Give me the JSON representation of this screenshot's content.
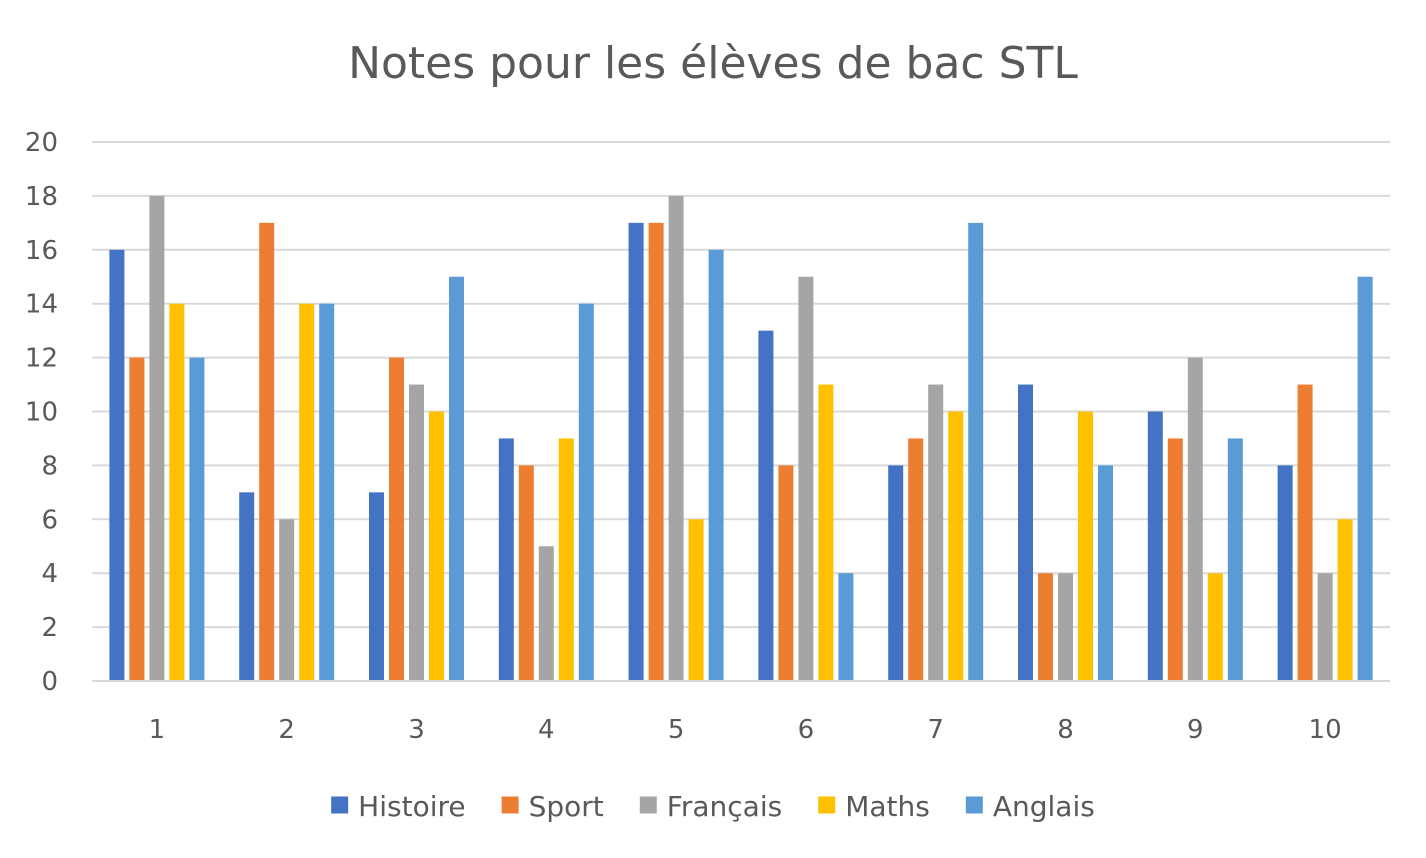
{
  "chart_data": {
    "type": "bar",
    "title": "Notes pour les élèves de bac STL",
    "xlabel": "",
    "ylabel": "",
    "categories": [
      "1",
      "2",
      "3",
      "4",
      "5",
      "6",
      "7",
      "8",
      "9",
      "10"
    ],
    "ylim": [
      0,
      20
    ],
    "yticks": [
      0,
      2,
      4,
      6,
      8,
      10,
      12,
      14,
      16,
      18,
      20
    ],
    "grid": true,
    "legend_position": "bottom",
    "series": [
      {
        "name": "Histoire",
        "color": "#4472C4",
        "values": [
          16,
          7,
          7,
          9,
          17,
          13,
          8,
          11,
          10,
          8
        ]
      },
      {
        "name": "Sport",
        "color": "#ED7D31",
        "values": [
          12,
          17,
          12,
          8,
          17,
          8,
          9,
          4,
          9,
          11
        ]
      },
      {
        "name": "Français",
        "color": "#A5A5A5",
        "values": [
          18,
          6,
          11,
          5,
          18,
          15,
          11,
          4,
          12,
          4
        ]
      },
      {
        "name": "Maths",
        "color": "#FFC000",
        "values": [
          14,
          14,
          10,
          9,
          6,
          11,
          10,
          10,
          4,
          6
        ]
      },
      {
        "name": "Anglais",
        "color": "#5B9BD5",
        "values": [
          12,
          14,
          15,
          14,
          16,
          4,
          17,
          8,
          9,
          15
        ]
      }
    ],
    "colors": {
      "gridline": "#D9D9D9",
      "axis": "#D9D9D9",
      "text": "#595959"
    }
  }
}
